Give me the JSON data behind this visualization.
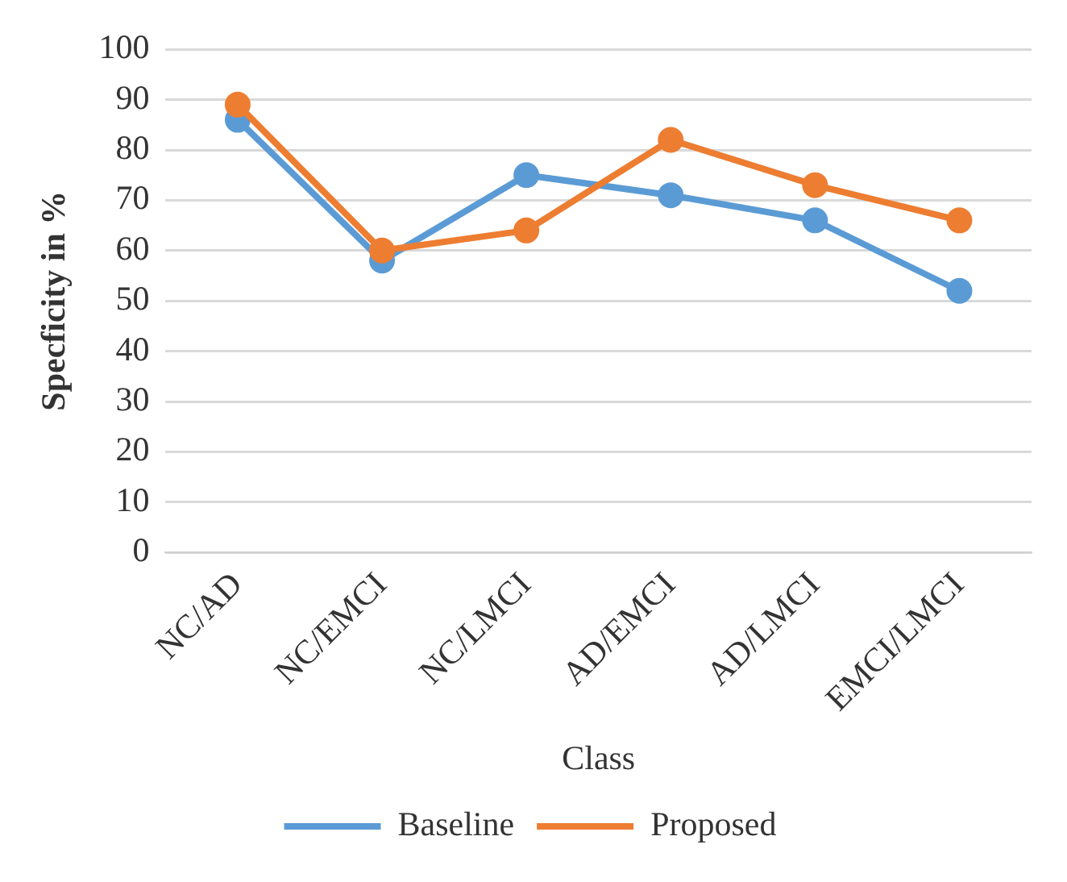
{
  "chart_data": {
    "type": "line",
    "xlabel": "Class",
    "ylabel": "Specficity in %",
    "categories": [
      "NC/AD",
      "NC/EMCI",
      "NC/LMCI",
      "AD/EMCI",
      "AD/LMCI",
      "EMCI/LMCI"
    ],
    "series": [
      {
        "name": "Baseline",
        "color": "#5b9bd5",
        "values": [
          86,
          58,
          75,
          71,
          66,
          52
        ]
      },
      {
        "name": "Proposed",
        "color": "#ed7d31",
        "values": [
          89,
          60,
          64,
          82,
          73,
          66
        ]
      }
    ],
    "ylim": [
      0,
      100
    ],
    "yticks": [
      0,
      10,
      20,
      30,
      40,
      50,
      60,
      70,
      80,
      90,
      100
    ],
    "grid": "y",
    "legend": "bottom",
    "marker": "circle",
    "line_style": "solid"
  }
}
